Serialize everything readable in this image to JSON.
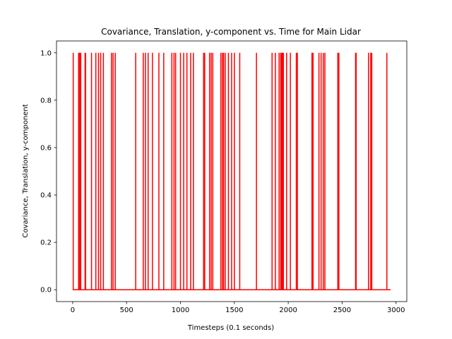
{
  "chart_data": {
    "type": "line",
    "title": "Covariance, Translation, y-component vs. Time for Main Lidar",
    "xlabel": "Timesteps (0.1 seconds)",
    "ylabel": "Covariance, Translation, y-component",
    "xlim": [
      -150,
      3100
    ],
    "ylim": [
      -0.05,
      1.05
    ],
    "x_range": [
      0,
      2950
    ],
    "baseline": 0.0,
    "spike_value": 1.0,
    "xticks": [
      0,
      500,
      1000,
      1500,
      2000,
      2500,
      3000
    ],
    "yticks": [
      0.0,
      0.2,
      0.4,
      0.6,
      0.8,
      1.0
    ],
    "xtick_labels": [
      "0",
      "500",
      "1000",
      "1500",
      "2000",
      "2500",
      "3000"
    ],
    "ytick_labels": [
      "0.0",
      "0.2",
      "0.4",
      "0.6",
      "0.8",
      "1.0"
    ],
    "grid": false,
    "series": [
      {
        "color": "#ff0000",
        "spike_timesteps": [
          5,
          55,
          65,
          75,
          115,
          120,
          175,
          215,
          240,
          260,
          285,
          360,
          375,
          395,
          585,
          655,
          675,
          700,
          740,
          800,
          845,
          920,
          940,
          955,
          1000,
          1030,
          1060,
          1095,
          1120,
          1215,
          1225,
          1270,
          1285,
          1300,
          1375,
          1390,
          1400,
          1415,
          1445,
          1475,
          1500,
          1550,
          1705,
          1850,
          1880,
          1915,
          1930,
          1935,
          1945,
          1955,
          1985,
          2020,
          2075,
          2085,
          2220,
          2230,
          2285,
          2305,
          2325,
          2340,
          2460,
          2470,
          2625,
          2630,
          2745,
          2765,
          2775,
          2915
        ]
      }
    ]
  }
}
